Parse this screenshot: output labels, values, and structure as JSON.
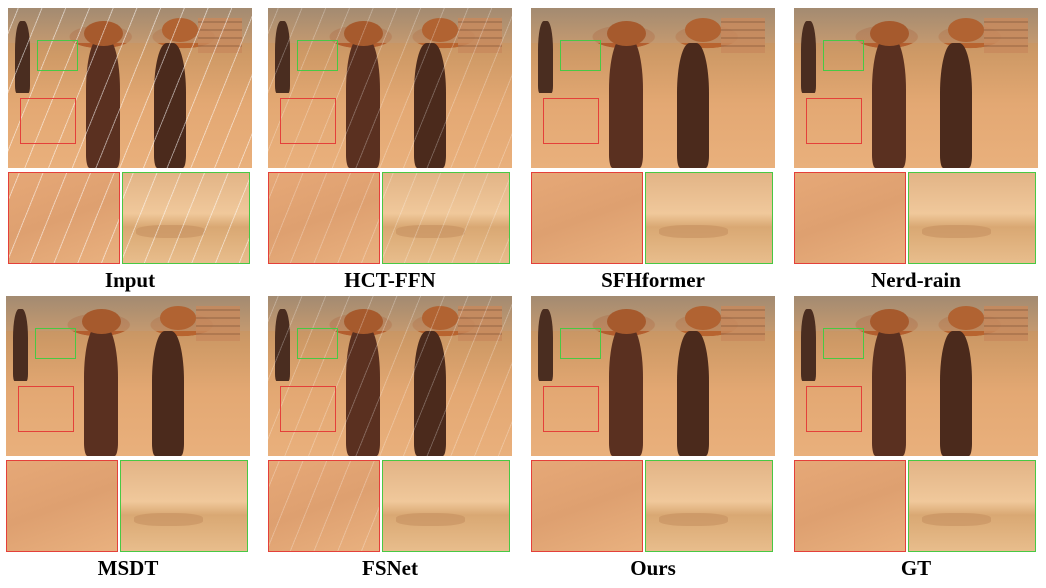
{
  "panels": [
    {
      "label": "Input",
      "rain": "heavy"
    },
    {
      "label": "HCT-FFN",
      "rain": "light"
    },
    {
      "label": "SFHformer",
      "rain": "none"
    },
    {
      "label": "Nerd-rain",
      "rain": "none"
    },
    {
      "label": "MSDT",
      "rain": "none"
    },
    {
      "label": "FSNet",
      "rain": "light"
    },
    {
      "label": "Ours",
      "rain": "none"
    },
    {
      "label": "GT",
      "rain": "none"
    }
  ],
  "colors": {
    "red_box": "#e4403a",
    "green_box": "#48c844"
  }
}
